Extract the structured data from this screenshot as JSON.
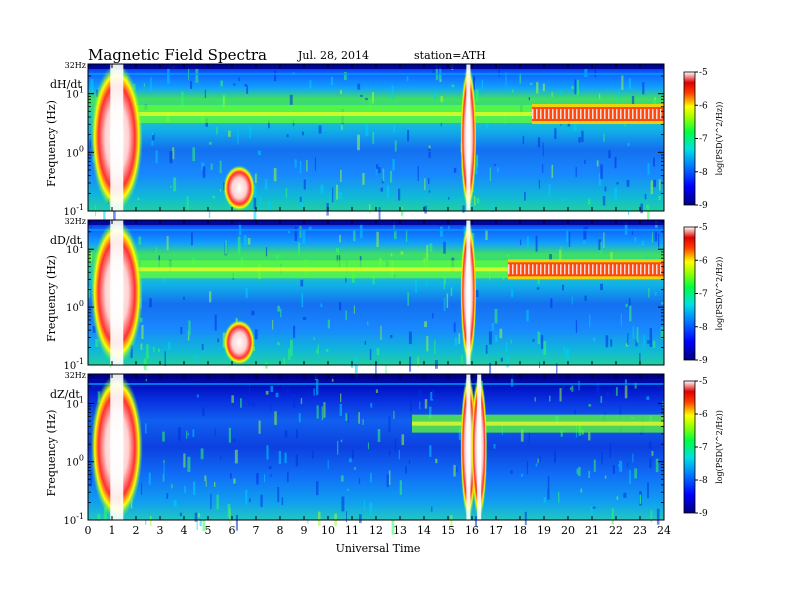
{
  "header": {
    "title": "Magnetic  Field  Spectra",
    "date": "Jul.  28,  2014",
    "station": "station=ATH"
  },
  "chart_data": [
    {
      "type": "heatmap",
      "panel_label": "dH/dt",
      "ylabel": "Frequency  (Hz)",
      "xlabel": "Universal Time",
      "xlim": [
        0,
        24
      ],
      "x_ticks": [
        "0",
        "1",
        "2",
        "3",
        "4",
        "5",
        "6",
        "7",
        "8",
        "9",
        "10",
        "11",
        "12",
        "13",
        "14",
        "15",
        "16",
        "17",
        "18",
        "19",
        "20",
        "21",
        "22",
        "23",
        "24"
      ],
      "y_scale": "log",
      "ylim": [
        0.1,
        32
      ],
      "y_ticks": [
        {
          "base": "10",
          "exp": "-1",
          "value": 0.1
        },
        {
          "base": "10",
          "exp": "0",
          "value": 1
        },
        {
          "base": "10",
          "exp": "1",
          "value": 10
        }
      ],
      "y_top_label": "32Hz",
      "colorbar": {
        "label": "log(PSD(V^2/Hz))",
        "ticks": [
          "-5",
          "-6",
          "-7",
          "-8",
          "-9"
        ],
        "range": [
          -9,
          -5
        ]
      },
      "bands": [
        {
          "freq": 4.5,
          "start_hour": 0.5,
          "end_hour": 24
        },
        {
          "freq": 4.5,
          "start_hour": 18.5,
          "end_hour": 24,
          "intense": true
        }
      ],
      "bursts": [
        {
          "center_hour": 1.2,
          "low_freq": 0.1,
          "high_freq": 32
        },
        {
          "center_hour": 6.3,
          "low_freq": 0.1,
          "high_freq": 0.6
        },
        {
          "center_hour": 15.85,
          "low_freq": 0.1,
          "high_freq": 32
        }
      ]
    },
    {
      "type": "heatmap",
      "panel_label": "dD/dt",
      "ylabel": "Frequency  (Hz)",
      "xlabel": "Universal Time",
      "xlim": [
        0,
        24
      ],
      "x_ticks": [
        "0",
        "1",
        "2",
        "3",
        "4",
        "5",
        "6",
        "7",
        "8",
        "9",
        "10",
        "11",
        "12",
        "13",
        "14",
        "15",
        "16",
        "17",
        "18",
        "19",
        "20",
        "21",
        "22",
        "23",
        "24"
      ],
      "y_scale": "log",
      "ylim": [
        0.1,
        32
      ],
      "y_ticks": [
        {
          "base": "10",
          "exp": "-1",
          "value": 0.1
        },
        {
          "base": "10",
          "exp": "0",
          "value": 1
        },
        {
          "base": "10",
          "exp": "1",
          "value": 10
        }
      ],
      "y_top_label": "32Hz",
      "colorbar": {
        "label": "log(PSD(V^2/Hz))",
        "ticks": [
          "-5",
          "-6",
          "-7",
          "-8",
          "-9"
        ],
        "range": [
          -9,
          -5
        ]
      },
      "bands": [
        {
          "freq": 4.5,
          "start_hour": 0.5,
          "end_hour": 24
        },
        {
          "freq": 4.5,
          "start_hour": 17.5,
          "end_hour": 24,
          "intense": true
        }
      ],
      "bursts": [
        {
          "center_hour": 1.2,
          "low_freq": 0.1,
          "high_freq": 32
        },
        {
          "center_hour": 6.3,
          "low_freq": 0.1,
          "high_freq": 0.6
        },
        {
          "center_hour": 15.85,
          "low_freq": 0.1,
          "high_freq": 32
        }
      ]
    },
    {
      "type": "heatmap",
      "panel_label": "dZ/dt",
      "ylabel": "Frequency  (Hz)",
      "xlabel": "Universal Time",
      "xlim": [
        0,
        24
      ],
      "x_ticks": [
        "0",
        "1",
        "2",
        "3",
        "4",
        "5",
        "6",
        "7",
        "8",
        "9",
        "10",
        "11",
        "12",
        "13",
        "14",
        "15",
        "16",
        "17",
        "18",
        "19",
        "20",
        "21",
        "22",
        "23",
        "24"
      ],
      "y_scale": "log",
      "ylim": [
        0.1,
        32
      ],
      "y_ticks": [
        {
          "base": "10",
          "exp": "-1",
          "value": 0.1
        },
        {
          "base": "10",
          "exp": "0",
          "value": 1
        },
        {
          "base": "10",
          "exp": "1",
          "value": 10
        }
      ],
      "y_top_label": "32Hz",
      "colorbar": {
        "label": "log(PSD(V^2/Hz))",
        "ticks": [
          "-5",
          "-6",
          "-7",
          "-8",
          "-9"
        ],
        "range": [
          -9,
          -5
        ]
      },
      "bands": [
        {
          "freq": 4.5,
          "start_hour": 13.5,
          "end_hour": 24
        }
      ],
      "bursts": [
        {
          "center_hour": 1.2,
          "low_freq": 0.1,
          "high_freq": 32
        },
        {
          "center_hour": 15.85,
          "low_freq": 0.1,
          "high_freq": 32
        },
        {
          "center_hour": 16.3,
          "low_freq": 0.1,
          "high_freq": 32
        }
      ]
    }
  ]
}
